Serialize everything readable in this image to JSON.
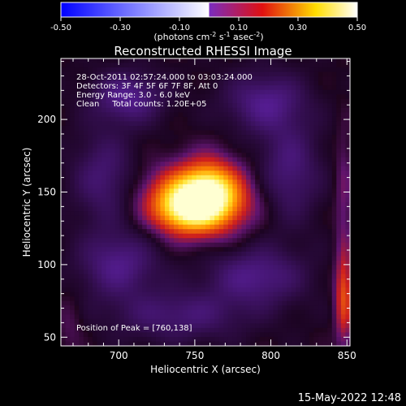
{
  "chart_data": {
    "type": "heatmap",
    "title": "Reconstructed RHESSI Image",
    "xlabel": "Heliocentric X (arcsec)",
    "ylabel": "Heliocentric Y (arcsec)",
    "xlim": [
      662,
      852
    ],
    "ylim": [
      44,
      242
    ],
    "xticks": [
      700,
      750,
      800,
      850
    ],
    "yticks": [
      50,
      100,
      150,
      200
    ],
    "colorbar": {
      "range": [
        -0.5,
        0.5
      ],
      "ticks": [
        "-0.50",
        "-0.30",
        "-0.10",
        "0.10",
        "0.30",
        "0.50"
      ],
      "units_prefix": "(photons cm",
      "units_exp1": "-2",
      "units_mid1": " s",
      "units_exp2": "-1",
      "units_mid2": " asec",
      "units_exp3": "-2",
      "units_suffix": ")",
      "colors": [
        "#0000ff",
        "#ffffff",
        "#7a2cc0",
        "#e01010",
        "#ffdd00",
        "#ffffff"
      ]
    },
    "annotations": [
      "28-Oct-2011 02:57:24.000 to 03:03:24.000",
      "Detectors: 3F 4F 5F 6F 7F 8F, Att 0",
      "Energy Range: 3.0 - 6.0 keV",
      "Clean     Total counts: 1.20E+05"
    ],
    "peak_label": "Position of Peak = [760,138]",
    "peak": [
      760,
      138
    ],
    "sources": [
      {
        "x": 752,
        "y": 144,
        "sx": 21,
        "sy": 15,
        "amp": 0.5
      },
      {
        "x": 760,
        "y": 152,
        "sx": 12,
        "sy": 15,
        "amp": 0.2
      },
      {
        "x": 742,
        "y": 137,
        "sx": 12,
        "sy": 10,
        "amp": 0.14
      },
      {
        "x": 706,
        "y": 215,
        "sx": 16,
        "sy": 12,
        "amp": -0.16
      },
      {
        "x": 796,
        "y": 212,
        "sx": 18,
        "sy": 14,
        "amp": -0.15
      },
      {
        "x": 690,
        "y": 160,
        "sx": 14,
        "sy": 22,
        "amp": -0.12
      },
      {
        "x": 812,
        "y": 165,
        "sx": 14,
        "sy": 24,
        "amp": -0.13
      },
      {
        "x": 700,
        "y": 100,
        "sx": 18,
        "sy": 16,
        "amp": -0.15
      },
      {
        "x": 790,
        "y": 92,
        "sx": 22,
        "sy": 14,
        "amp": -0.15
      },
      {
        "x": 740,
        "y": 65,
        "sx": 30,
        "sy": 12,
        "amp": -0.12
      },
      {
        "x": 848,
        "y": 78,
        "sx": 4,
        "sy": 22,
        "amp": 0.22
      },
      {
        "x": 848,
        "y": 150,
        "sx": 4,
        "sy": 30,
        "amp": 0.08
      },
      {
        "x": 668,
        "y": 60,
        "sx": 6,
        "sy": 14,
        "amp": 0.05
      }
    ]
  },
  "timestamp": "15-May-2022 12:48"
}
